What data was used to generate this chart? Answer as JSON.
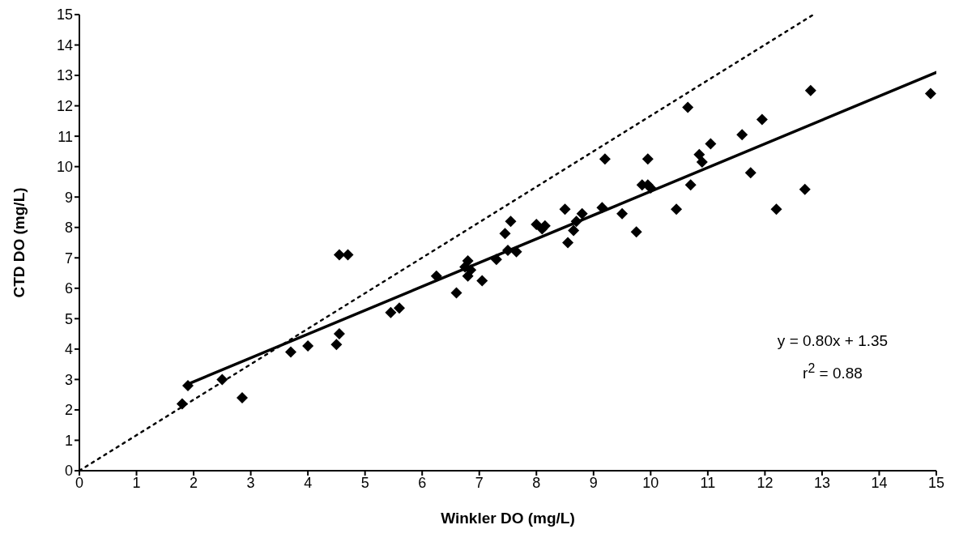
{
  "chart_data": {
    "type": "scatter",
    "xlabel": "Winkler DO (mg/L)",
    "ylabel": "CTD DO (mg/L)",
    "xlim": [
      0,
      15
    ],
    "ylim": [
      0,
      15
    ],
    "xticks": [
      0,
      1,
      2,
      3,
      4,
      5,
      6,
      7,
      8,
      9,
      10,
      11,
      12,
      13,
      14,
      15
    ],
    "yticks": [
      0,
      1,
      2,
      3,
      4,
      5,
      6,
      7,
      8,
      9,
      10,
      11,
      12,
      13,
      14,
      15
    ],
    "grid": false,
    "legend": false,
    "marker": "diamond",
    "annotations": [
      "y = 0.80x + 1.35",
      "r$^{2}$ = 0.88"
    ],
    "series": [
      {
        "color": "#000000",
        "x": [
          1.8,
          1.9,
          2.5,
          2.85,
          3.7,
          4.0,
          4.5,
          4.55,
          4.55,
          4.7,
          5.45,
          5.6,
          6.25,
          6.6,
          6.75,
          6.8,
          6.8,
          6.85,
          7.05,
          7.3,
          7.45,
          7.5,
          7.55,
          7.65,
          8.0,
          8.1,
          8.15,
          8.5,
          8.55,
          8.65,
          8.7,
          8.8,
          9.15,
          9.2,
          9.5,
          9.75,
          9.85,
          9.95,
          9.95,
          10.0,
          10.45,
          10.65,
          10.7,
          10.85,
          10.9,
          11.05,
          11.6,
          11.75,
          11.95,
          12.2,
          12.7,
          12.8,
          14.9
        ],
        "values": [
          2.2,
          2.8,
          3.0,
          2.4,
          3.9,
          4.1,
          4.15,
          4.5,
          7.1,
          7.1,
          5.2,
          5.35,
          6.4,
          5.85,
          6.7,
          6.4,
          6.9,
          6.6,
          6.25,
          6.95,
          7.8,
          7.25,
          8.2,
          7.2,
          8.1,
          7.95,
          8.05,
          8.6,
          7.5,
          7.9,
          8.2,
          8.45,
          8.65,
          10.25,
          8.45,
          7.85,
          9.4,
          9.4,
          10.25,
          9.3,
          8.6,
          11.95,
          9.4,
          10.4,
          10.15,
          10.75,
          11.05,
          9.8,
          11.55,
          8.6,
          9.25,
          12.5,
          12.4
        ]
      },
      {
        "type": "line",
        "color": "#000000",
        "line_style": "solid",
        "marker": "none",
        "x": [
          1.9,
          15
        ],
        "values": [
          2.85,
          13.1
        ]
      },
      {
        "type": "line",
        "color": "#000000",
        "line_style": "dotted",
        "marker": "none",
        "x": [
          0,
          12.85
        ],
        "values": [
          0,
          15
        ]
      }
    ]
  }
}
